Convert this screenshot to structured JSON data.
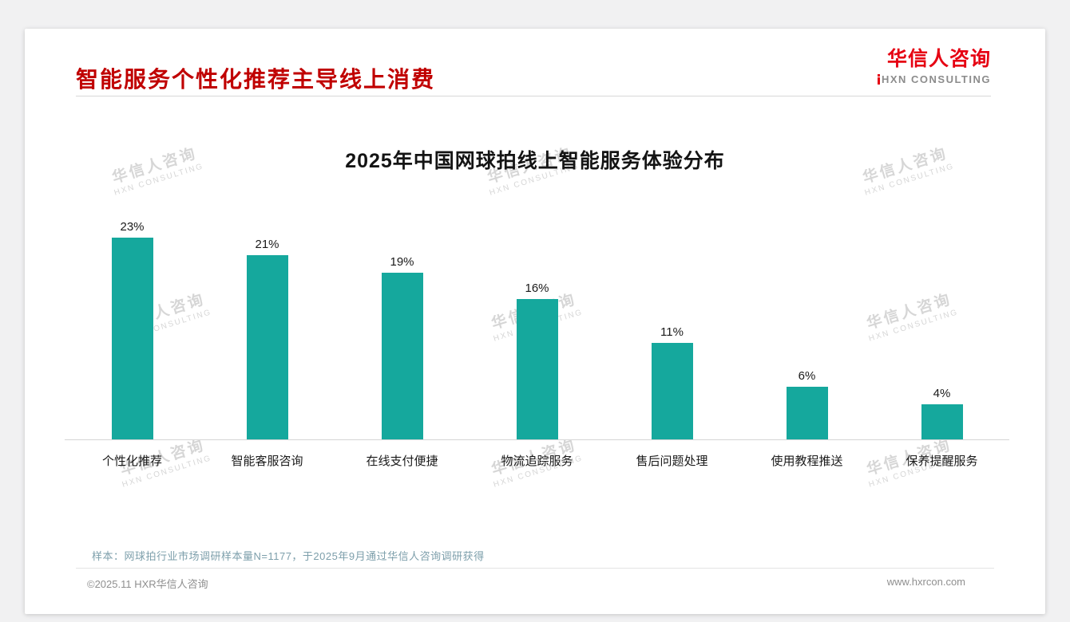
{
  "page": {
    "header": {
      "title": "智能服务个性化推荐主导线上消费",
      "logo": {
        "cn": "华信人咨询",
        "en": "HXN CONSULTING"
      }
    },
    "footnote": "样本：网球拍行业市场调研样本量N=1177，于2025年9月通过华信人咨询调研获得",
    "footer": {
      "left": "©2025.11 HXR华信人咨询",
      "right": "www.hxrcon.com"
    },
    "watermark": {
      "line1": "华信人咨询",
      "line2": "HXN CONSULTING"
    }
  },
  "chart_data": {
    "type": "bar",
    "title": "2025年中国网球拍线上智能服务体验分布",
    "categories": [
      "个性化推荐",
      "智能客服咨询",
      "在线支付便捷",
      "物流追踪服务",
      "售后问题处理",
      "使用教程推送",
      "保养提醒服务"
    ],
    "values": [
      23,
      21,
      19,
      16,
      11,
      6,
      4
    ],
    "value_labels": [
      "23%",
      "21%",
      "19%",
      "16%",
      "11%",
      "6%",
      "4%"
    ],
    "unit": "%",
    "xlabel": "",
    "ylabel": "",
    "ylim": [
      0,
      25
    ],
    "grid": false,
    "legend": false,
    "bar_color": "#15a89d"
  },
  "colors": {
    "title_red": "#c00000",
    "logo_red": "#e60012",
    "bar_teal": "#15a89d",
    "footnote_gray_teal": "#7d9fab",
    "watermark_gray": "#c9c9c9"
  }
}
